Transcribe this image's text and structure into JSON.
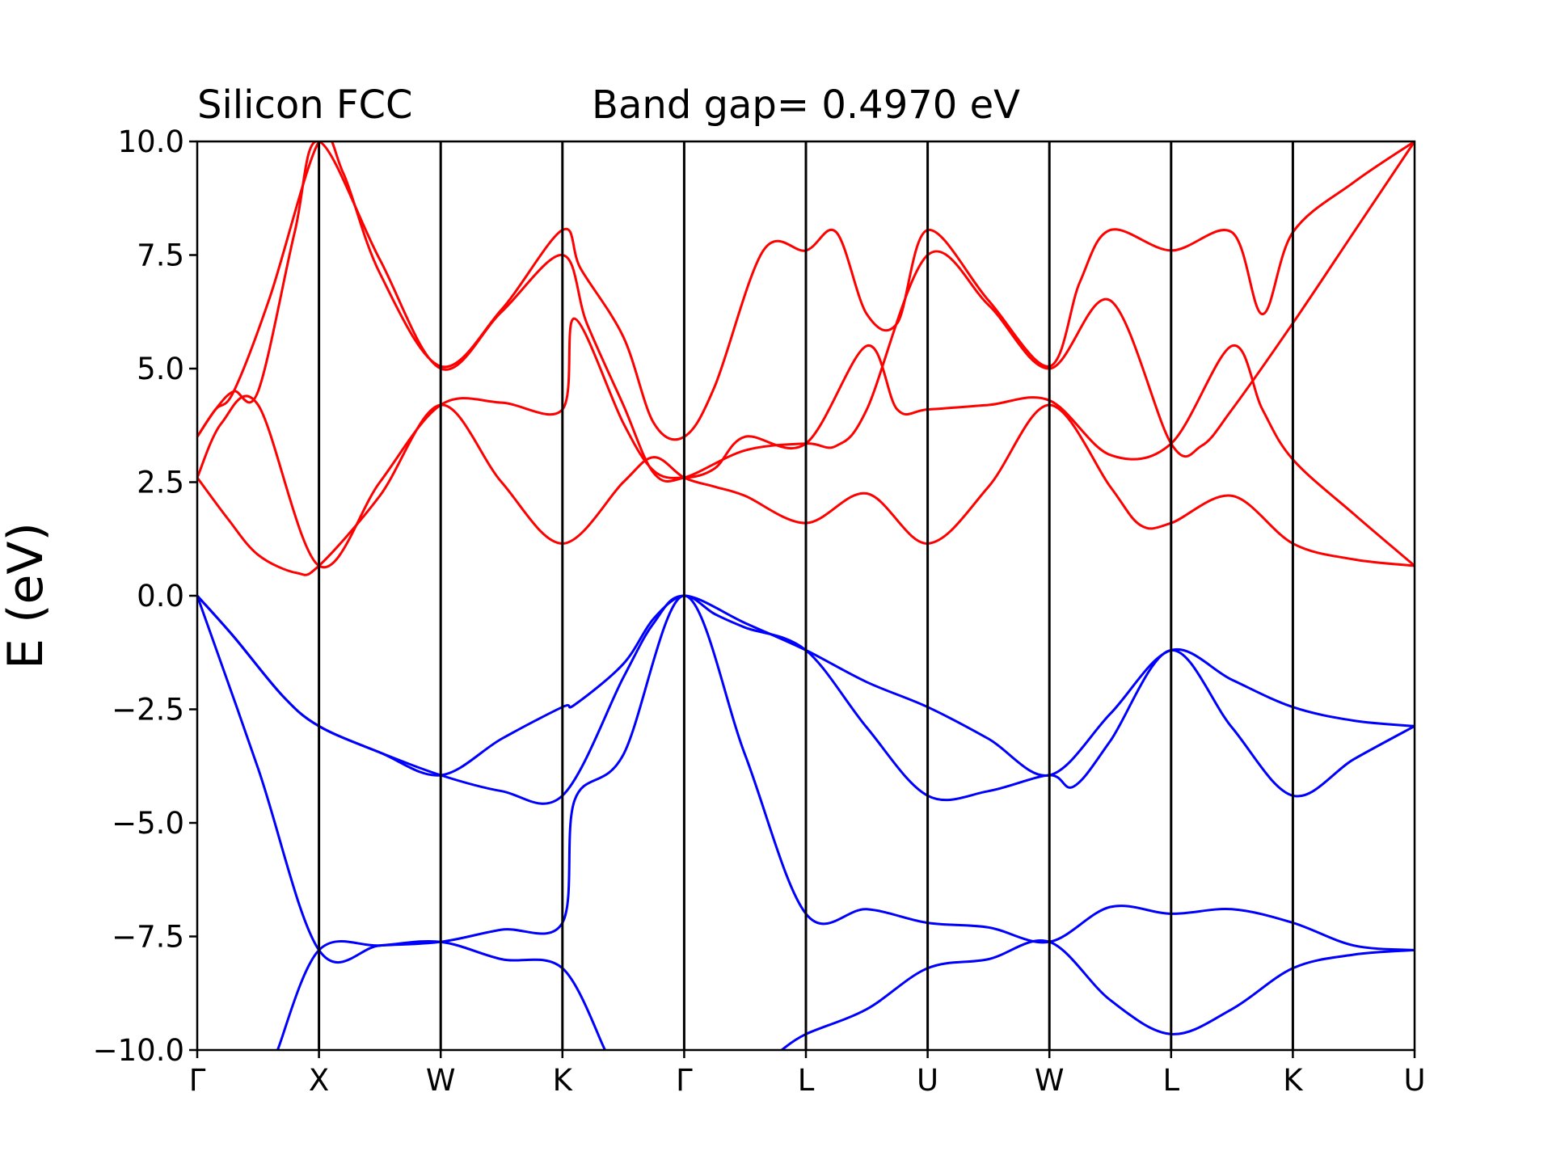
{
  "chart_data": {
    "type": "line",
    "title_left": "Silicon FCC",
    "title_right": "Band gap= 0.4970 eV",
    "ylabel": "E (eV)",
    "xlabel": "",
    "ylim": [
      -10.0,
      10.0
    ],
    "y_ticks": [
      10.0,
      7.5,
      5.0,
      2.5,
      0.0,
      -2.5,
      -5.0,
      -7.5,
      -10.0
    ],
    "y_tick_labels": [
      "10.0",
      "7.5",
      "5.0",
      "2.5",
      "0.0",
      "−2.5",
      "−5.0",
      "−7.5",
      "−10.0"
    ],
    "kpath_labels": [
      "Γ",
      "X",
      "W",
      "K",
      "Γ",
      "L",
      "U",
      "W",
      "L",
      "K",
      "U"
    ],
    "grid": false,
    "colors": {
      "conduction": "#ff0000",
      "valence": "#0000ff",
      "vlines": "#000000"
    },
    "series": [
      {
        "band": "valence",
        "x": [
          0,
          0.3,
          0.7,
          1.0,
          1.5,
          2.0,
          2.5,
          3.0,
          3.5,
          3.75,
          4.0,
          4.5,
          5.0,
          5.5,
          6.0,
          6.5,
          7.0,
          7.5,
          8.0,
          8.5,
          9.0,
          9.5,
          10.0
        ],
        "values": [
          0.0,
          -0.9,
          -2.2,
          -2.87,
          -3.45,
          -3.95,
          -4.3,
          -4.4,
          -1.8,
          -0.6,
          0.0,
          -0.6,
          -1.2,
          -1.9,
          -2.45,
          -3.15,
          -3.95,
          -2.6,
          -1.2,
          -1.85,
          -2.45,
          -2.75,
          -2.87
        ]
      },
      {
        "band": "valence",
        "x": [
          0,
          0.3,
          0.7,
          1.0,
          1.5,
          2.0,
          2.5,
          3.0,
          3.1,
          3.5,
          3.75,
          4.0,
          4.25,
          4.5,
          5.0,
          5.5,
          6.0,
          6.5,
          7.0,
          7.2,
          7.5,
          8.0,
          8.5,
          9.0,
          9.5,
          10.0
        ],
        "values": [
          0.0,
          -0.9,
          -2.2,
          -2.87,
          -3.45,
          -3.95,
          -3.15,
          -2.45,
          -2.4,
          -1.5,
          -0.5,
          0.0,
          -0.4,
          -0.7,
          -1.2,
          -2.9,
          -4.4,
          -4.3,
          -3.95,
          -4.2,
          -3.2,
          -1.2,
          -2.9,
          -4.4,
          -3.6,
          -2.87
        ]
      },
      {
        "band": "valence",
        "x": [
          0,
          0.5,
          1.0,
          1.5,
          2.0,
          2.5,
          3.0,
          3.1,
          3.5,
          4.0,
          4.5,
          5.0,
          5.5,
          6.0,
          6.5,
          7.0,
          7.5,
          8.0,
          8.5,
          9.0,
          9.5,
          10.0
        ],
        "values": [
          0.0,
          -3.8,
          -7.8,
          -7.7,
          -7.62,
          -7.35,
          -7.2,
          -4.5,
          -3.5,
          0.0,
          -3.5,
          -7.0,
          -6.9,
          -7.2,
          -7.3,
          -7.62,
          -6.85,
          -7.0,
          -6.9,
          -7.2,
          -7.7,
          -7.8
        ]
      },
      {
        "band": "valence",
        "x": [
          0.66,
          1.0,
          1.5,
          2.0,
          2.5,
          3.0,
          3.35
        ],
        "values": [
          -10.0,
          -7.8,
          -7.7,
          -7.62,
          -8.0,
          -8.2,
          -10.0
        ]
      },
      {
        "band": "valence",
        "x": [
          4.8,
          5.0,
          5.5,
          6.0,
          6.5,
          7.0,
          7.5,
          8.0,
          8.5,
          9.0,
          9.5,
          10.0
        ],
        "values": [
          -10.0,
          -9.65,
          -9.1,
          -8.2,
          -8.0,
          -7.62,
          -8.9,
          -9.65,
          -9.1,
          -8.2,
          -7.9,
          -7.8
        ]
      },
      {
        "band": "conduction",
        "x": [
          0,
          0.25,
          0.5,
          0.82,
          1.0,
          1.5,
          2.0,
          2.5,
          3.0,
          3.5,
          3.75,
          4.0,
          4.25,
          4.5,
          5.0,
          5.5,
          6.0,
          6.5,
          7.0,
          7.5,
          7.75,
          8.0,
          8.5,
          9.0,
          9.5,
          10.0
        ],
        "values": [
          2.6,
          1.7,
          0.9,
          0.5,
          0.66,
          2.2,
          4.2,
          2.5,
          1.15,
          2.5,
          3.05,
          2.6,
          2.4,
          2.2,
          1.6,
          2.25,
          1.15,
          2.4,
          4.2,
          2.4,
          1.55,
          1.6,
          2.2,
          1.15,
          0.8,
          0.66
        ]
      },
      {
        "band": "conduction",
        "x": [
          0,
          0.2,
          0.5,
          1.0,
          1.5,
          2.0,
          2.5,
          3.0,
          3.1,
          3.5,
          3.75,
          4.0,
          4.25,
          4.5,
          5.0,
          5.5,
          5.75,
          6.0,
          6.5,
          7.0,
          7.5,
          8.0,
          8.5,
          8.75,
          9.0,
          9.5,
          10.0
        ],
        "values": [
          2.6,
          3.8,
          4.2,
          0.66,
          2.5,
          4.2,
          4.25,
          4.1,
          6.1,
          3.8,
          2.75,
          2.6,
          2.8,
          3.5,
          3.35,
          5.5,
          4.1,
          4.1,
          4.2,
          4.3,
          3.1,
          3.35,
          5.5,
          4.1,
          3.0,
          1.8,
          0.66
        ]
      },
      {
        "band": "conduction",
        "x": [
          0,
          0.15,
          0.3,
          0.5,
          0.8,
          1.0,
          1.5,
          2.0,
          2.5,
          3.0,
          3.2,
          3.5,
          3.75,
          4.0,
          4.5,
          5.0,
          5.25,
          5.5,
          6.0,
          6.5,
          7.0,
          7.5,
          8.0,
          8.25,
          8.5,
          9.0,
          9.5,
          10.0
        ],
        "values": [
          3.5,
          4.1,
          4.5,
          4.5,
          8.0,
          10.0,
          7.4,
          5.0,
          6.25,
          7.5,
          6.0,
          4.2,
          2.7,
          2.6,
          3.2,
          3.35,
          3.3,
          4.1,
          7.5,
          6.4,
          5.0,
          6.5,
          3.35,
          3.3,
          4.1,
          6.0,
          8.0,
          10.0
        ]
      },
      {
        "band": "conduction",
        "x": [
          0,
          0.15,
          0.3,
          0.6,
          1.0,
          1.2,
          1.5,
          2.0,
          2.5,
          3.0,
          3.15,
          3.5,
          3.75,
          4.0,
          4.25,
          4.65,
          5.0,
          5.25,
          5.5,
          5.75,
          6.0,
          6.5,
          7.0,
          7.25,
          7.5,
          8.0,
          8.5,
          8.75,
          9.0,
          9.5,
          10.0
        ],
        "values": [
          3.5,
          4.1,
          4.5,
          6.6,
          10.0,
          9.3,
          7.1,
          5.05,
          6.3,
          8.05,
          7.2,
          5.7,
          3.8,
          3.5,
          4.6,
          7.6,
          7.6,
          8.0,
          6.2,
          6.0,
          8.05,
          6.5,
          5.05,
          6.9,
          8.05,
          7.6,
          8.0,
          6.2,
          8.0,
          9.1,
          10.0
        ]
      }
    ]
  }
}
